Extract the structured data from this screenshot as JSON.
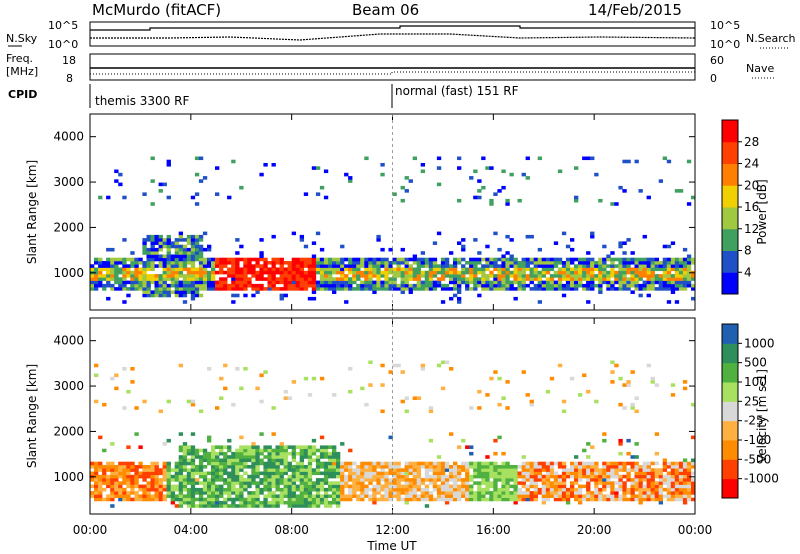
{
  "header": {
    "station": "McMurdo (fitACF)",
    "beam": "Beam 06",
    "date": "14/Feb/2015"
  },
  "top_panels": {
    "nsky_label": "N.Sky",
    "nsky_ticks": [
      "10^5",
      "10^0"
    ],
    "nsearch_label": "N.Search",
    "nsearch_ticks": [
      "10^5",
      "10^0"
    ],
    "freq_label_1": "Freq.",
    "freq_label_2": "[MHz]",
    "freq_ticks": [
      "18",
      "8"
    ],
    "nave_label": "Nave",
    "nave_ticks": [
      "60",
      "0"
    ],
    "cpid_label": "CPID",
    "cpid_segments": [
      {
        "label": "themis 3300 RF",
        "start_hour": 0
      },
      {
        "label": "normal (fast) 151 RF",
        "start_hour": 12
      }
    ]
  },
  "chart_data": [
    {
      "type": "heatmap",
      "name": "power",
      "ylabel": "Slant Range [km]",
      "y_ticks": [
        "1000",
        "2000",
        "3000",
        "4000"
      ],
      "ylim": [
        180,
        4500
      ],
      "xlim": [
        0,
        24
      ],
      "colorbar_label": "Power [dB]",
      "colorbar_ticks": [
        "28",
        "24",
        "20",
        "16",
        "12",
        "8",
        "4"
      ],
      "colorbar_colors": [
        "#0000ff",
        "#2050c8",
        "#40a060",
        "#a0c840",
        "#f0d000",
        "#ff8000",
        "#ff4000",
        "#ff0000"
      ],
      "features": [
        {
          "hours": [
            0,
            24
          ],
          "range_km": [
            600,
            1400
          ],
          "level": "8-20 dB"
        },
        {
          "hours": [
            5,
            9
          ],
          "range_km": [
            400,
            1400
          ],
          "level": "28+ dB"
        },
        {
          "hours": [
            0,
            24
          ],
          "range_km": [
            2500,
            3600
          ],
          "level": "scattered"
        }
      ]
    },
    {
      "type": "heatmap",
      "name": "velocity",
      "ylabel": "Slant Range [km]",
      "y_ticks": [
        "1000",
        "2000",
        "3000",
        "4000"
      ],
      "ylim": [
        180,
        4500
      ],
      "xlim": [
        0,
        24
      ],
      "xlabel": "Time UT",
      "x_ticks": [
        "00:00",
        "04:00",
        "08:00",
        "12:00",
        "16:00",
        "20:00",
        "00:00"
      ],
      "colorbar_label": "Velocity [m s-1]",
      "colorbar_ticks": [
        "1000",
        "500",
        "100",
        "25",
        "-25",
        "-100",
        "-500",
        "-1000"
      ],
      "colorbar_colors": [
        "#ff0000",
        "#ff4000",
        "#ff8c00",
        "#ffb040",
        "#d8d8d8",
        "#a8e060",
        "#50b040",
        "#2f8f5a",
        "#2060b0"
      ],
      "features": [
        {
          "hours": [
            0,
            3
          ],
          "range_km": [
            500,
            1400
          ],
          "velocity": "-100 to -500 m/s"
        },
        {
          "hours": [
            3.5,
            10
          ],
          "range_km": [
            300,
            1700
          ],
          "velocity": "+100 to +500 m/s"
        },
        {
          "hours": [
            10,
            24
          ],
          "range_km": [
            400,
            1300
          ],
          "velocity": "-25 to -500 m/s"
        }
      ]
    }
  ]
}
